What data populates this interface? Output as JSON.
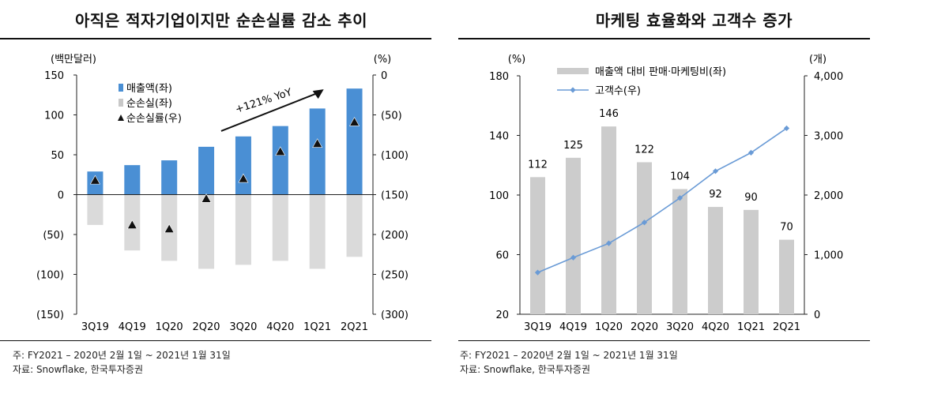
{
  "chart_data": [
    {
      "type": "bar",
      "title": "아직은 적자기업이지만 순손실률 감소 추이",
      "categories": [
        "3Q19",
        "4Q19",
        "1Q20",
        "2Q20",
        "3Q20",
        "4Q20",
        "1Q21",
        "2Q21"
      ],
      "left_unit": "(백만달러)",
      "right_unit": "(%)",
      "left_axis": {
        "range": [
          -150,
          150
        ],
        "ticks": [
          "150",
          "100",
          "50",
          "0",
          "(50)",
          "(100)",
          "(150)"
        ],
        "tick_values": [
          150,
          100,
          50,
          0,
          -50,
          -100,
          -150
        ]
      },
      "right_axis": {
        "range": [
          -300,
          0
        ],
        "ticks": [
          "0",
          "(50)",
          "(100)",
          "(150)",
          "(200)",
          "(250)",
          "(300)"
        ],
        "tick_values": [
          0,
          -50,
          -100,
          -150,
          -200,
          -250,
          -300
        ]
      },
      "series": [
        {
          "name": "매출액(좌)",
          "type": "bar",
          "axis": "left",
          "color": "#4a8fd4",
          "values": [
            29,
            37,
            43,
            60,
            73,
            86,
            108,
            133
          ]
        },
        {
          "name": "순손실(좌)",
          "type": "bar",
          "axis": "left",
          "color": "#dadada",
          "values": [
            -38,
            -70,
            -83,
            -93,
            -88,
            -83,
            -93,
            -78
          ]
        },
        {
          "name": "순손실률(우)",
          "type": "marker",
          "axis": "right",
          "color": "#111111",
          "values": [
            -132,
            -188,
            -193,
            -155,
            -130,
            -96,
            -86,
            -59
          ]
        }
      ],
      "annotation": "+121% YoY",
      "footnotes": [
        "주: FY2021 – 2020년 2월 1일 ~ 2021년 1월 31일",
        "자료: Snowflake, 한국투자증권"
      ]
    },
    {
      "type": "bar+line",
      "title": "마케팅 효율화와 고객수 증가",
      "categories": [
        "3Q19",
        "4Q19",
        "1Q20",
        "2Q20",
        "3Q20",
        "4Q20",
        "1Q21",
        "2Q21"
      ],
      "left_unit": "(%)",
      "right_unit": "(개)",
      "left_axis": {
        "range": [
          20,
          180
        ],
        "ticks": [
          "180",
          "140",
          "100",
          "60",
          "20"
        ],
        "tick_values": [
          180,
          140,
          100,
          60,
          20
        ]
      },
      "right_axis": {
        "range": [
          0,
          4000
        ],
        "ticks": [
          "4,000",
          "3,000",
          "2,000",
          "1,000",
          "0"
        ],
        "tick_values": [
          4000,
          3000,
          2000,
          1000,
          0
        ]
      },
      "series": [
        {
          "name": "매출액 대비 판매·마케팅비(좌)",
          "type": "bar",
          "axis": "left",
          "color": "#cccccc",
          "values": [
            112,
            125,
            146,
            122,
            104,
            92,
            90,
            70
          ],
          "labels": [
            "112",
            "125",
            "146",
            "122",
            "104",
            "92",
            "90",
            "70"
          ]
        },
        {
          "name": "고객수(우)",
          "type": "line",
          "axis": "right",
          "color": "#6a9bd6",
          "values": [
            700,
            950,
            1190,
            1540,
            1950,
            2400,
            2710,
            3120
          ]
        }
      ],
      "footnotes": [
        "주: FY2021 – 2020년 2월 1일 ~ 2021년 1월 31일",
        "자료: Snowflake, 한국투자증권"
      ]
    }
  ]
}
